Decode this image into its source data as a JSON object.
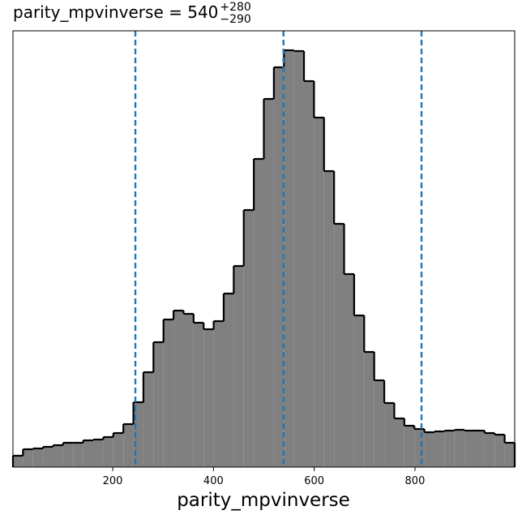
{
  "chart_data": {
    "type": "histogram",
    "title": {
      "text": "parity_mpvinverse = 540",
      "sup": "+280",
      "sub": "−290"
    },
    "x_label": "parity_mpvinverse",
    "bins": [
      2,
      21.92,
      41.84,
      61.76,
      81.68,
      101.6,
      121.52,
      141.44,
      161.36,
      181.28,
      201.2,
      221.12,
      241.04,
      260.96,
      280.88,
      300.8,
      320.72,
      340.64,
      360.56,
      380.48,
      400.4,
      420.32,
      440.24,
      460.16,
      480.08,
      500,
      519.92,
      539.84,
      559.76,
      579.68,
      599.6,
      619.52,
      639.44,
      659.36,
      679.28,
      699.2,
      719.12,
      739.04,
      758.96,
      778.88,
      798.8,
      818.72,
      838.64,
      858.56,
      878.48,
      898.4,
      918.32,
      938.24,
      958.16,
      978.08,
      998
    ],
    "counts": [
      14,
      22,
      23,
      25,
      27,
      30,
      30,
      33,
      34,
      37,
      42,
      53,
      80,
      117,
      154,
      182,
      193,
      189,
      178,
      170,
      180,
      214,
      248,
      317,
      380,
      454,
      493,
      514,
      513,
      476,
      431,
      365,
      300,
      238,
      187,
      142,
      107,
      79,
      60,
      51,
      47,
      43,
      44,
      45,
      46,
      45,
      45,
      42,
      40,
      30
    ],
    "color": "#808080",
    "edge_color": "#000000",
    "quantiles": [
      245,
      539,
      813
    ],
    "quantile_color": "#1f77b4",
    "xlim": [
      2,
      998
    ],
    "ylim": [
      0,
      538
    ],
    "xticks": [
      200,
      400,
      600,
      800
    ]
  }
}
